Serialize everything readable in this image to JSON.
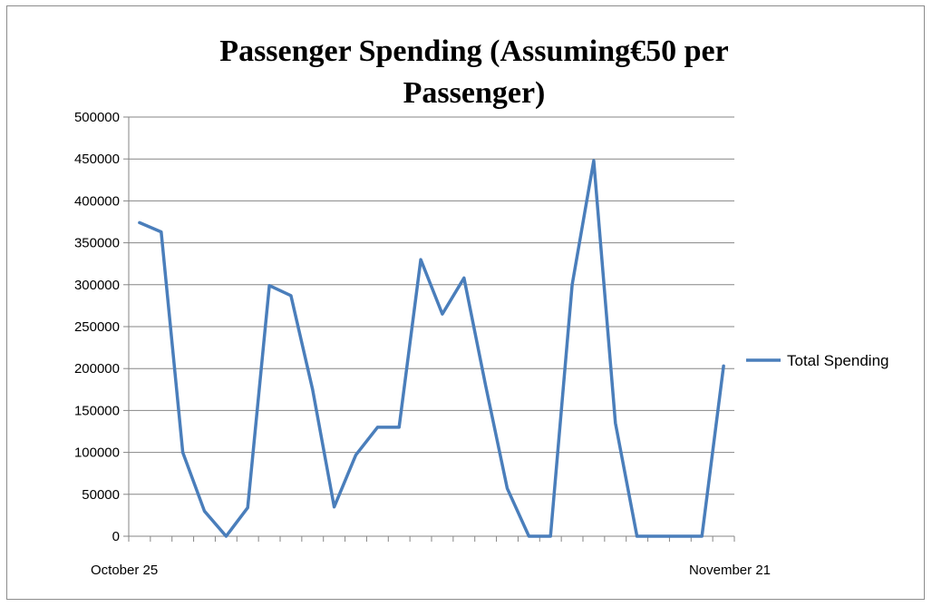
{
  "chart_data": {
    "type": "line",
    "title_lines": [
      "Passenger Spending (Assuming€50 per",
      "Passenger)"
    ],
    "x_tick_labels": {
      "first": "October 25",
      "last": "November 21"
    },
    "x": [
      "October 25",
      "",
      "",
      "",
      "",
      "",
      "",
      "",
      "",
      "",
      "",
      "",
      "",
      "",
      "",
      "",
      "",
      "",
      "",
      "",
      "",
      "",
      "",
      "",
      "",
      "",
      "",
      "November 21"
    ],
    "ylim": [
      0,
      500000
    ],
    "y_ticks": [
      0,
      50000,
      100000,
      150000,
      200000,
      250000,
      300000,
      350000,
      400000,
      450000,
      500000
    ],
    "y_tick_labels": [
      "0",
      "50000",
      "100000",
      "150000",
      "200000",
      "250000",
      "300000",
      "350000",
      "400000",
      "450000",
      "500000"
    ],
    "grid": true,
    "legend": "right",
    "series": [
      {
        "name": "Total Spending",
        "color": "#4a7ebb",
        "values": [
          374000,
          363000,
          100000,
          30000,
          0,
          34000,
          299000,
          287000,
          175000,
          35000,
          97000,
          130000,
          130000,
          330000,
          265000,
          308000,
          180000,
          57000,
          0,
          0,
          300000,
          448000,
          135000,
          0,
          0,
          0,
          0,
          203000
        ]
      }
    ]
  }
}
